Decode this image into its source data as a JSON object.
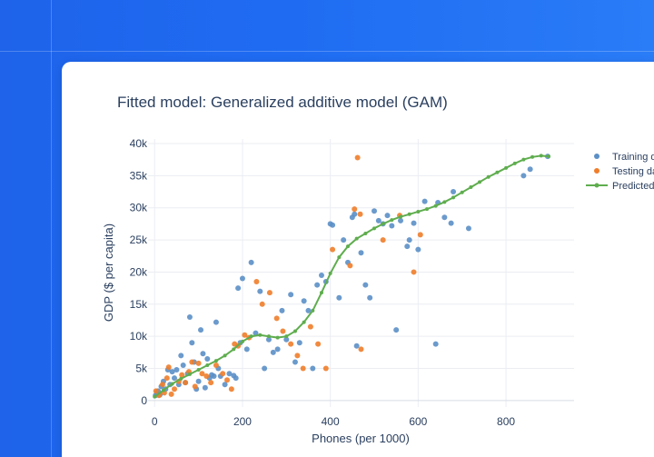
{
  "colors": {
    "background": "#1f6cf2",
    "card": "#ffffff",
    "training": "#5b8fc6",
    "testing": "#f07d2a",
    "predicted": "#5fad4e",
    "grid": "#ebedf2",
    "text": "#2a3f5f"
  },
  "chart_data": {
    "type": "scatter",
    "title": "Fitted model: Generalized additive model (GAM)",
    "xlabel": "Phones (per 1000)",
    "ylabel": "GDP ($ per capita)",
    "xlim": [
      -15,
      955
    ],
    "ylim": [
      -1000,
      40700
    ],
    "x_ticks": [
      0,
      200,
      400,
      600,
      800
    ],
    "x_tick_labels": [
      "0",
      "200",
      "400",
      "600",
      "800"
    ],
    "y_ticks": [
      0,
      5000,
      10000,
      15000,
      20000,
      25000,
      30000,
      35000,
      40000
    ],
    "y_tick_labels": [
      "0",
      "5k",
      "10k",
      "15k",
      "20k",
      "25k",
      "30k",
      "35k",
      "40k"
    ],
    "grid": true,
    "legend_position": "top-right",
    "legend": [
      "Training data",
      "Testing data",
      "Predicted"
    ],
    "series": [
      {
        "name": "Training data",
        "mode": "markers",
        "x": [
          2,
          5,
          8,
          12,
          15,
          20,
          25,
          30,
          35,
          40,
          45,
          50,
          55,
          60,
          65,
          70,
          75,
          80,
          85,
          90,
          95,
          100,
          105,
          110,
          115,
          120,
          125,
          130,
          135,
          140,
          145,
          150,
          160,
          170,
          180,
          185,
          190,
          195,
          200,
          210,
          220,
          230,
          240,
          250,
          260,
          270,
          280,
          290,
          300,
          310,
          320,
          330,
          340,
          350,
          360,
          370,
          380,
          390,
          400,
          405,
          420,
          430,
          440,
          450,
          455,
          460,
          470,
          480,
          490,
          500,
          510,
          520,
          530,
          540,
          550,
          560,
          575,
          580,
          590,
          600,
          615,
          640,
          645,
          660,
          675,
          680,
          715,
          840,
          855,
          895
        ],
        "y": [
          800,
          1200,
          1500,
          900,
          2200,
          3000,
          1800,
          4800,
          2500,
          4500,
          3500,
          4800,
          2500,
          7000,
          5500,
          2800,
          4200,
          13000,
          9000,
          6000,
          1800,
          3000,
          11000,
          7300,
          2000,
          6500,
          3500,
          4000,
          3800,
          12200,
          5000,
          3800,
          2500,
          4200,
          3900,
          3500,
          17500,
          9000,
          19000,
          8000,
          21500,
          10500,
          17000,
          5000,
          9500,
          7500,
          8000,
          14000,
          9500,
          16500,
          6000,
          9000,
          15500,
          14000,
          5000,
          18000,
          19500,
          18500,
          27500,
          27300,
          16000,
          25000,
          21500,
          28500,
          29000,
          8500,
          23000,
          18000,
          16000,
          29500,
          28000,
          27500,
          28800,
          27200,
          11000,
          28000,
          24000,
          25000,
          27600,
          23500,
          31000,
          8800,
          30800,
          28500,
          27600,
          32500,
          26800,
          35000,
          36000,
          38000
        ]
      },
      {
        "name": "Testing data",
        "mode": "markers",
        "x": [
          3,
          10,
          18,
          22,
          28,
          32,
          38,
          45,
          55,
          62,
          70,
          78,
          85,
          92,
          100,
          108,
          118,
          128,
          140,
          155,
          165,
          175,
          182,
          190,
          205,
          215,
          232,
          245,
          262,
          278,
          292,
          310,
          325,
          338,
          355,
          372,
          390,
          405,
          445,
          455,
          462,
          468,
          470,
          520,
          558,
          590,
          605
        ],
        "y": [
          1500,
          800,
          2500,
          1200,
          3500,
          5200,
          1000,
          1800,
          3000,
          4000,
          2800,
          4500,
          6000,
          2200,
          5800,
          4200,
          3800,
          2800,
          5500,
          4200,
          3200,
          1800,
          8800,
          8500,
          10200,
          9800,
          18500,
          15000,
          16800,
          12800,
          10800,
          8800,
          7000,
          5000,
          11500,
          8800,
          5000,
          23500,
          21000,
          29800,
          37800,
          29000,
          8000,
          25000,
          28800,
          20000,
          25800
        ]
      },
      {
        "name": "Predicted",
        "mode": "lines+markers",
        "x": [
          0,
          20,
          40,
          60,
          80,
          100,
          120,
          140,
          160,
          180,
          200,
          220,
          240,
          260,
          280,
          300,
          320,
          340,
          360,
          380,
          400,
          420,
          440,
          460,
          480,
          500,
          520,
          540,
          560,
          580,
          600,
          620,
          640,
          660,
          680,
          700,
          720,
          740,
          760,
          780,
          800,
          820,
          840,
          860,
          880,
          897
        ],
        "y": [
          600,
          1600,
          2600,
          3400,
          4100,
          4800,
          5500,
          6200,
          7000,
          8000,
          9200,
          10000,
          10200,
          10000,
          9800,
          10000,
          10800,
          12200,
          14000,
          16800,
          19800,
          22300,
          24000,
          25200,
          26000,
          26800,
          27500,
          28100,
          28600,
          29000,
          29400,
          29800,
          30300,
          30900,
          31600,
          32400,
          33200,
          34000,
          34800,
          35500,
          36200,
          36900,
          37500,
          37900,
          38100,
          38000
        ]
      }
    ]
  }
}
